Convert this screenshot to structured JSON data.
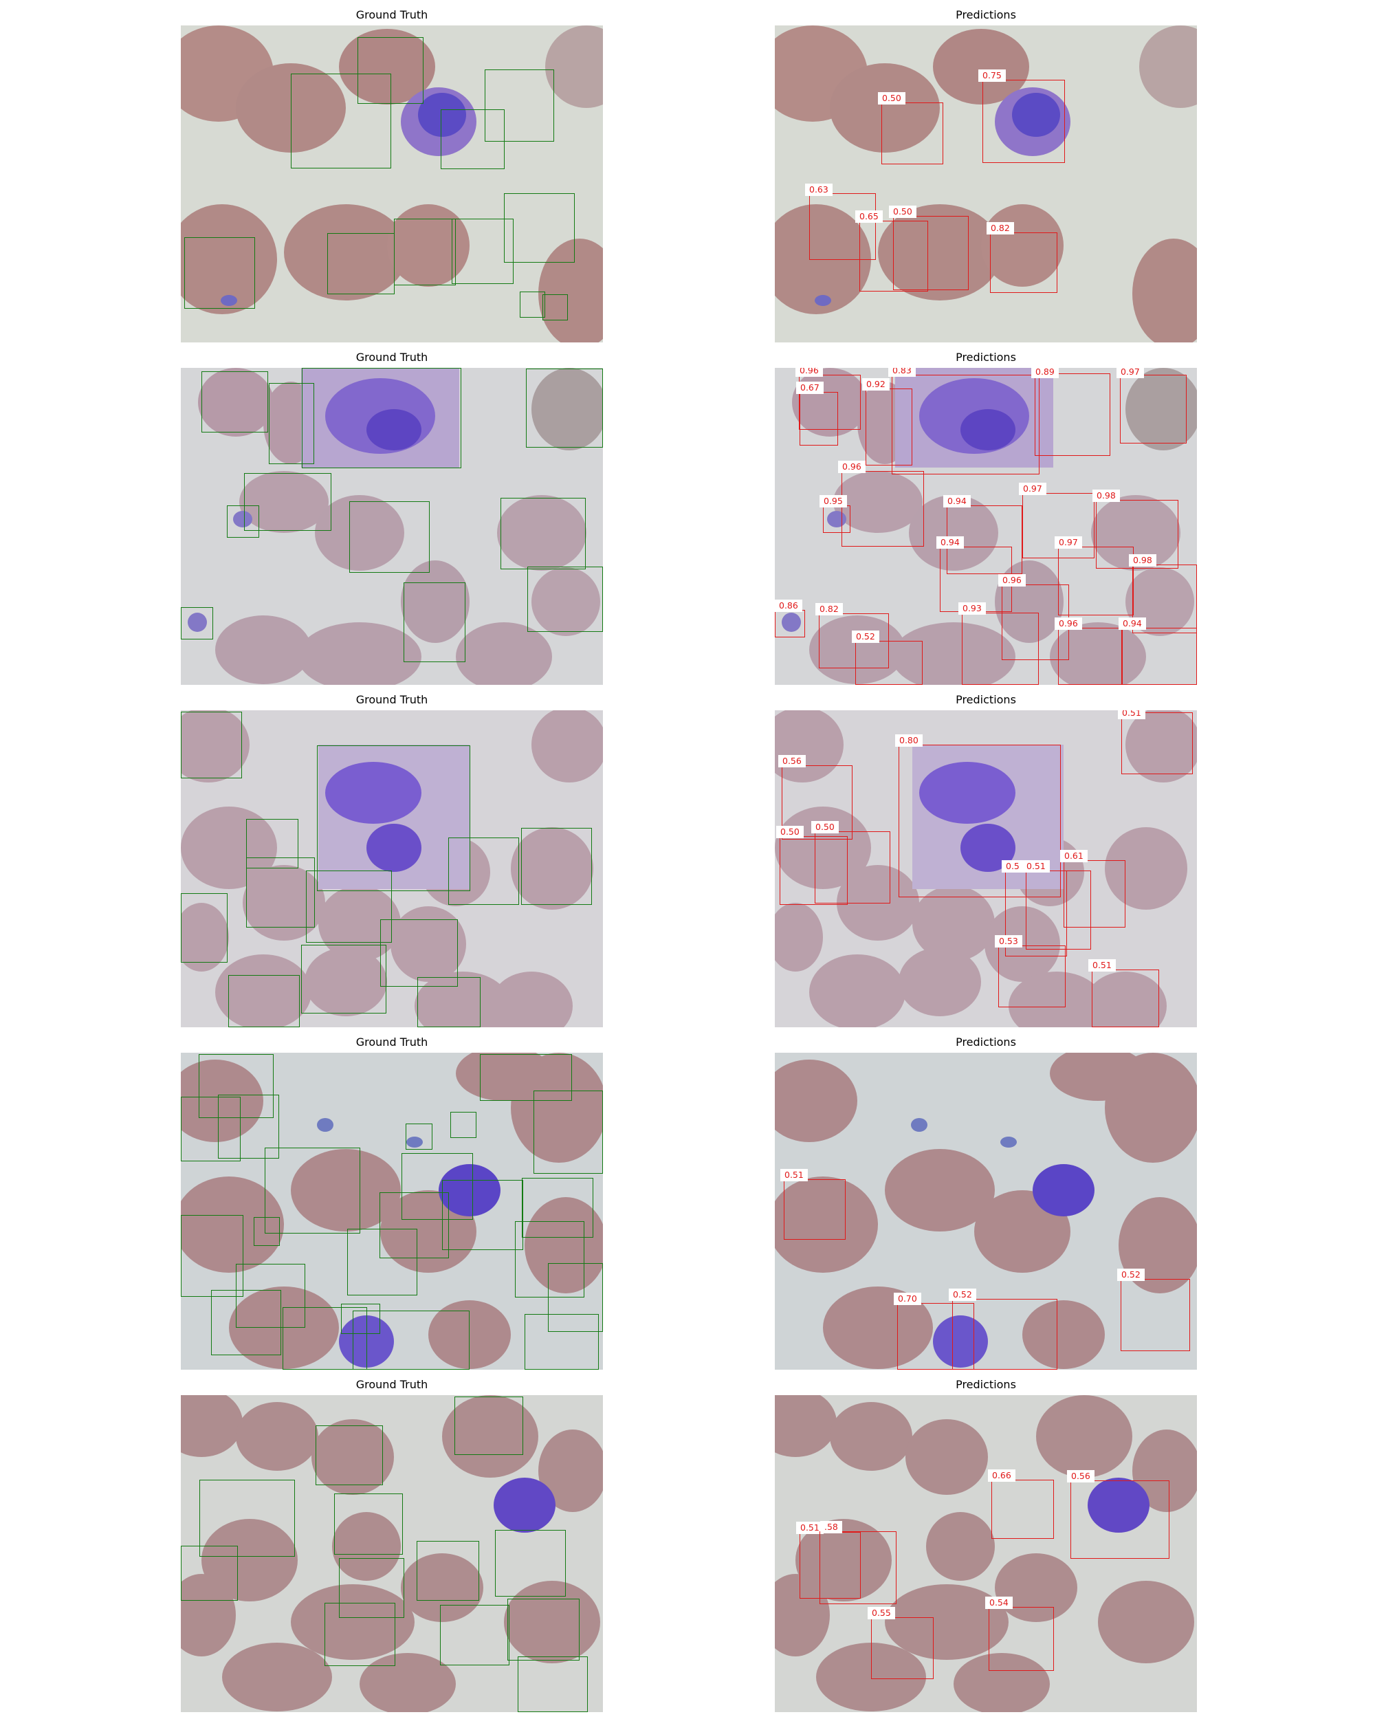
{
  "figure": {
    "rows": [
      {
        "gt_title": "Ground Truth",
        "pred_title": "Predictions",
        "gt_box_count": 13,
        "pred_scores": [
          "0.75",
          "0.50",
          "0.63",
          "0.65",
          "0.50",
          "0.82"
        ]
      },
      {
        "gt_title": "Ground Truth",
        "pred_title": "Predictions",
        "gt_box_count": 14,
        "pred_scores": [
          "0.96",
          "0.67",
          "0.92",
          "0.83",
          "0.89",
          "0.97",
          "0.96",
          "0.95",
          "0.94",
          "0.97",
          "0.98",
          "0.94",
          "0.97",
          "0.98",
          "0.96",
          "0.93",
          "0.86",
          "0.82",
          "0.52",
          "0.96",
          "0.94"
        ]
      },
      {
        "gt_title": "Ground Truth",
        "pred_title": "Predictions",
        "gt_box_count": 13,
        "pred_scores": [
          "0.51",
          "0.56",
          "0.80",
          "0.50",
          "0.50",
          "0.61",
          "0.5",
          "0.51",
          "0.53",
          "0.51"
        ]
      },
      {
        "gt_title": "Ground Truth",
        "pred_title": "Predictions",
        "gt_box_count": 24,
        "pred_scores": [
          "0.51",
          "0.52",
          "0.70",
          "0.52"
        ]
      },
      {
        "gt_title": "Ground Truth",
        "pred_title": "Predictions",
        "gt_box_count": 13,
        "pred_scores": [
          "0.66",
          "0.56",
          "0.51",
          ".58",
          "0.55",
          "0.54"
        ]
      }
    ],
    "colors": {
      "ground_truth_box": "#137a13",
      "prediction_box": "#e01919",
      "background_plasma": "#d7dad3",
      "red_cell": "#b18a87",
      "nucleus": "#5b4bc4"
    }
  }
}
